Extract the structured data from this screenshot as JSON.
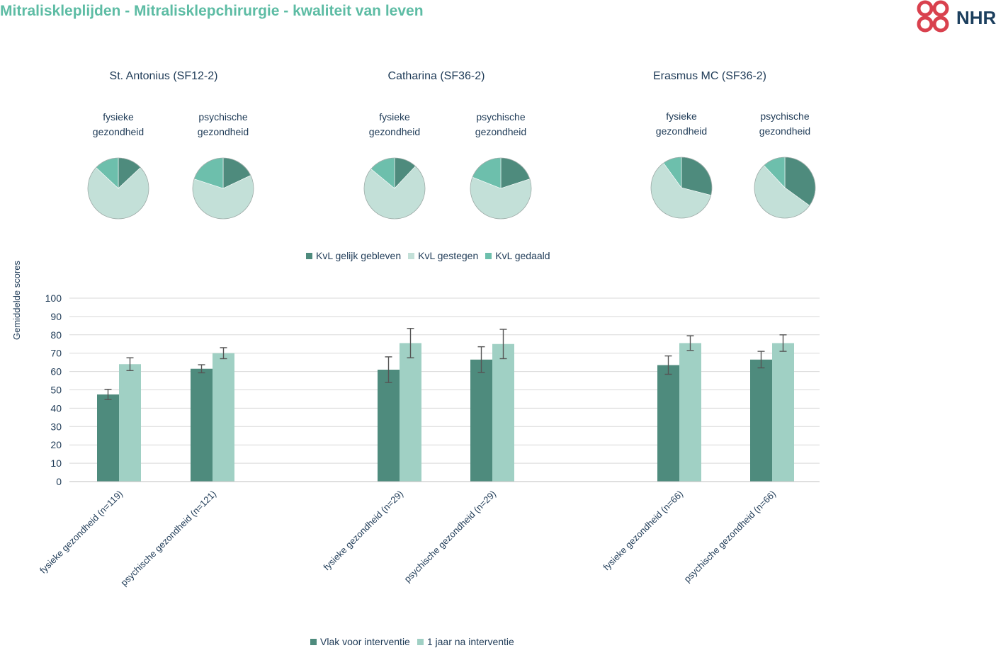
{
  "title": "Mitraliskleplijden - Mitralisklepchirurgie - kwaliteit van leven",
  "logo_text": "NHR",
  "colors": {
    "dark": "#4e8b7d",
    "light": "#a0d0c4",
    "pale": "#c3e0d8",
    "teal": "#6dbfac",
    "title": "#5dbca4",
    "logo_red": "#d9414e",
    "logo_navy": "#1c3f5e"
  },
  "hospitals": [
    {
      "name": "St. Antonius (SF12-2)",
      "pie_labels": [
        "fysieke\ngezondheid",
        "psychische\ngezondheid"
      ]
    },
    {
      "name": "Catharina (SF36-2)",
      "pie_labels": [
        "fysieke\ngezondheid",
        "psychische\ngezondheid"
      ]
    },
    {
      "name": "Erasmus MC (SF36-2)",
      "pie_labels": [
        "fysieke\ngezondheid",
        "psychische\ngezondheid"
      ]
    }
  ],
  "pie_legend": [
    "KvL gelijk gebleven",
    "KvL gestegen",
    "KvL gedaald"
  ],
  "bar_legend": [
    "Vlak voor interventie",
    "1 jaar na interventie"
  ],
  "chart_data": [
    {
      "type": "pie",
      "categories": [
        "KvL gelijk gebleven",
        "KvL gestegen",
        "KvL gedaald"
      ],
      "pies": [
        {
          "values": [
            13,
            74,
            13
          ]
        },
        {
          "values": [
            18,
            62,
            20
          ]
        },
        {
          "values": [
            12,
            74,
            14
          ]
        },
        {
          "values": [
            20,
            61,
            19
          ]
        },
        {
          "values": [
            29,
            61,
            10
          ]
        },
        {
          "values": [
            35,
            53,
            12
          ]
        }
      ]
    },
    {
      "type": "bar",
      "categories": [
        "fysieke gezondheid (n=119)",
        "psychische gezondheid (n=121)",
        "fysieke gezondheid (n=29)",
        "psychische gezondheid (n=29)",
        "fysieke gezondheid (n=66)",
        "psychische gezondheid (n=66)"
      ],
      "series": [
        {
          "name": "Vlak voor interventie",
          "values": [
            47.5,
            61.5,
            61,
            66.5,
            63.5,
            66.5
          ],
          "err": [
            2.8,
            2.2,
            7,
            7,
            5,
            4.5
          ]
        },
        {
          "name": "1 jaar na interventie",
          "values": [
            64,
            70,
            75.5,
            75,
            75.5,
            75.5
          ],
          "err": [
            3.5,
            3,
            8,
            8,
            4,
            4.5
          ]
        }
      ],
      "ylabel": "Gemiddelde scores",
      "ylim": [
        0,
        100
      ],
      "yticks": [
        0,
        10,
        20,
        30,
        40,
        50,
        60,
        70,
        80,
        90,
        100
      ],
      "grid": true,
      "legend_position": "bottom"
    }
  ]
}
